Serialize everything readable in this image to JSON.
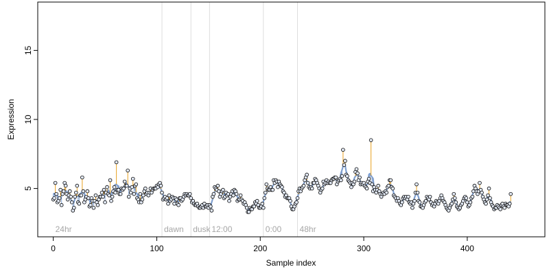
{
  "chart_data": {
    "type": "scatter",
    "title": "",
    "xlabel": "Sample index",
    "ylabel": "Expression",
    "xlim": [
      -15,
      475
    ],
    "ylim": [
      1.5,
      18.5
    ],
    "x_ticks": [
      0,
      100,
      200,
      300,
      400
    ],
    "y_ticks": [
      5,
      10,
      15
    ],
    "grid": false,
    "legend": "none",
    "colors": {
      "fitted_line": "#7f9fcf",
      "residual_above": "#e8a020",
      "residual_below": "#7f9fcf",
      "point_fill": "#e2e9f5",
      "point_stroke": "#000000",
      "segment_divider": "#dddddd",
      "segment_label": "#a6a6a6"
    },
    "segments": [
      {
        "label": "24hr",
        "start": 0
      },
      {
        "label": "dawn",
        "start": 105
      },
      {
        "label": "dusk",
        "start": 133
      },
      {
        "label": "12:00",
        "start": 151
      },
      {
        "label": "0:00",
        "start": 203
      },
      {
        "label": "48hr",
        "start": 236
      }
    ],
    "series": [
      {
        "values": [
          4.2,
          4.3,
          5.4,
          4.6,
          4.0,
          4.1,
          4.3,
          4.9,
          3.8,
          4.6,
          4.8,
          5.4,
          5.2,
          4.6,
          4.2,
          4.5,
          4.8,
          4.4,
          4.0,
          3.4,
          3.6,
          4.4,
          4.7,
          5.2,
          4.0,
          3.9,
          4.5,
          4.5,
          5.8,
          4.8,
          4.0,
          4.2,
          4.4,
          4.8,
          4.3,
          3.7,
          3.8,
          4.3,
          4.1,
          3.6,
          4.1,
          4.5,
          4.0,
          3.8,
          4.2,
          4.4,
          4.4,
          4.7,
          4.4,
          4.9,
          4.0,
          4.7,
          5.1,
          4.6,
          4.5,
          5.6,
          4.1,
          4.4,
          4.8,
          5.1,
          4.7,
          6.9,
          4.9,
          4.9,
          4.6,
          4.6,
          5.0,
          4.9,
          5.0,
          5.5,
          5.2,
          5.2,
          6.3,
          4.4,
          5.0,
          4.7,
          5.1,
          5.7,
          4.6,
          5.2,
          5.3,
          4.3,
          4.2,
          4.0,
          4.6,
          4.0,
          4.2,
          4.5,
          4.8,
          5.0,
          4.6,
          4.7,
          4.5,
          4.7,
          5.0,
          4.7,
          4.9,
          5.0,
          5.0,
          5.0,
          5.2,
          5.1,
          5.3,
          5.4,
          5.2,
          4.7,
          4.2,
          4.3,
          4.4,
          4.2,
          4.3,
          3.9,
          4.5,
          4.1,
          4.2,
          4.4,
          4.3,
          3.9,
          4.3,
          4.2,
          3.9,
          3.8,
          4.3,
          4.3,
          4.1,
          4.2,
          4.4,
          4.6,
          4.5,
          4.6,
          4.5,
          4.5,
          4.6,
          4.3,
          4.0,
          4.1,
          3.9,
          3.8,
          3.8,
          3.9,
          3.7,
          3.6,
          3.6,
          3.7,
          3.8,
          3.6,
          3.9,
          3.7,
          3.7,
          3.8,
          3.6,
          3.8,
          3.7,
          3.4,
          4.4,
          4.6,
          5.1,
          5.0,
          4.9,
          5.2,
          4.8,
          4.4,
          4.6,
          4.8,
          4.9,
          4.3,
          4.4,
          4.7,
          4.5,
          4.6,
          4.1,
          4.4,
          4.6,
          4.8,
          4.5,
          4.9,
          4.8,
          4.6,
          4.1,
          4.2,
          4.2,
          4.5,
          4.2,
          4.1,
          3.9,
          4.0,
          3.8,
          3.6,
          3.3,
          3.3,
          3.6,
          3.5,
          3.5,
          3.7,
          3.7,
          4.0,
          3.9,
          4.1,
          3.8,
          3.6,
          3.6,
          3.7,
          3.9,
          3.6,
          4.3,
          4.7,
          5.3,
          5.0,
          4.9,
          4.9,
          5.1,
          4.9,
          4.9,
          5.6,
          5.4,
          5.6,
          5.5,
          5.1,
          5.5,
          5.3,
          5.2,
          5.1,
          4.8,
          4.7,
          4.4,
          4.5,
          4.3,
          4.3,
          4.3,
          4.1,
          3.7,
          3.5,
          3.5,
          3.7,
          3.9,
          4.0,
          4.3,
          4.8,
          5.0,
          4.8,
          5.0,
          5.1,
          5.2,
          5.6,
          5.8,
          6.0,
          5.4,
          5.1,
          5.0,
          5.1,
          5.0,
          5.4,
          5.4,
          5.7,
          5.6,
          5.4,
          5.2,
          5.0,
          4.7,
          4.9,
          5.0,
          5.5,
          5.3,
          5.4,
          5.6,
          5.4,
          5.5,
          5.4,
          5.4,
          5.6,
          5.7,
          5.7,
          5.8,
          5.8,
          5.3,
          5.5,
          5.6,
          5.7,
          5.6,
          5.9,
          7.8,
          6.7,
          7.0,
          6.0,
          5.9,
          5.6,
          5.5,
          5.4,
          5.1,
          5.4,
          5.3,
          5.5,
          6.2,
          6.4,
          6.1,
          5.6,
          5.8,
          5.3,
          5.4,
          5.3,
          5.4,
          5.2,
          5.1,
          5.0,
          5.5,
          5.7,
          5.4,
          8.5,
          5.3,
          4.8,
          5.1,
          4.9,
          4.7,
          4.9,
          5.2,
          4.8,
          4.6,
          4.4,
          4.6,
          4.7,
          4.6,
          4.8,
          4.7,
          5.1,
          5.2,
          5.6,
          5.6,
          5.1,
          5.0,
          4.5,
          4.4,
          4.3,
          4.1,
          4.3,
          4.1,
          3.9,
          3.8,
          4.0,
          4.3,
          4.4,
          4.3,
          4.4,
          4.2,
          4.4,
          4.0,
          3.9,
          4.0,
          3.6,
          3.9,
          4.1,
          4.7,
          5.3,
          4.7,
          4.1,
          4.0,
          3.7,
          3.7,
          3.6,
          3.8,
          4.0,
          4.1,
          4.4,
          4.3,
          4.2,
          4.4,
          4.0,
          3.8,
          3.9,
          3.7,
          3.9,
          4.1,
          4.0,
          3.9,
          4.1,
          4.3,
          4.5,
          4.3,
          4.1,
          4.0,
          3.8,
          3.6,
          3.5,
          3.4,
          3.6,
          3.8,
          3.9,
          4.2,
          4.6,
          4.3,
          4.0,
          3.7,
          3.6,
          3.5,
          3.6,
          3.8,
          3.9,
          4.1,
          4.3,
          4.4,
          4.3,
          4.0,
          3.7,
          3.8,
          4.0,
          4.3,
          4.4,
          4.8,
          5.2,
          5.0,
          4.8,
          4.6,
          4.8,
          5.4,
          4.9,
          4.7,
          4.4,
          4.2,
          4.0,
          3.9,
          4.2,
          4.5,
          5.0,
          4.3,
          4.0,
          3.8,
          3.7,
          3.5,
          3.6,
          3.6,
          3.8,
          3.7,
          3.6,
          3.5,
          3.8,
          3.9,
          3.7,
          3.6,
          3.9,
          3.8,
          3.8,
          3.7,
          3.9,
          4.6
        ]
      }
    ]
  }
}
